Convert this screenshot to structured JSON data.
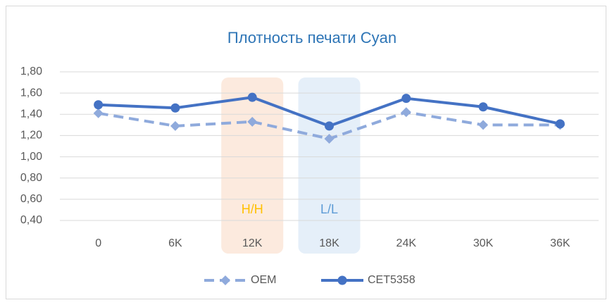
{
  "chart_data": {
    "type": "line",
    "title": "Плотность печати Cyan",
    "categories": [
      "0",
      "6K",
      "12K",
      "18K",
      "24K",
      "30K",
      "36K"
    ],
    "series": [
      {
        "name": "OEM",
        "color": "#8faadc",
        "dashed": true,
        "marker": "diamond",
        "values": [
          1.41,
          1.29,
          1.33,
          1.17,
          1.42,
          1.3,
          1.3
        ]
      },
      {
        "name": "CET5358",
        "color": "#4472c4",
        "dashed": false,
        "marker": "circle",
        "values": [
          1.49,
          1.46,
          1.56,
          1.29,
          1.55,
          1.47,
          1.31
        ]
      }
    ],
    "ylim": [
      0.4,
      1.8
    ],
    "yticks": [
      {
        "value": 0.4,
        "label": "0,40"
      },
      {
        "value": 0.6,
        "label": "0,60"
      },
      {
        "value": 0.8,
        "label": "0,80"
      },
      {
        "value": 1.0,
        "label": "1,00"
      },
      {
        "value": 1.2,
        "label": "1,20"
      },
      {
        "value": 1.4,
        "label": "1,40"
      },
      {
        "value": 1.6,
        "label": "1,60"
      },
      {
        "value": 1.8,
        "label": "1,80"
      }
    ],
    "grid": true,
    "legend": "bottom",
    "annotations": [
      {
        "text": "H/H",
        "category": "12K",
        "color": "#ffc000",
        "band_color": "#fbe5d6"
      },
      {
        "text": "L/L",
        "category": "18K",
        "color": "#5b9bd5",
        "band_color": "#deebf7"
      }
    ]
  }
}
